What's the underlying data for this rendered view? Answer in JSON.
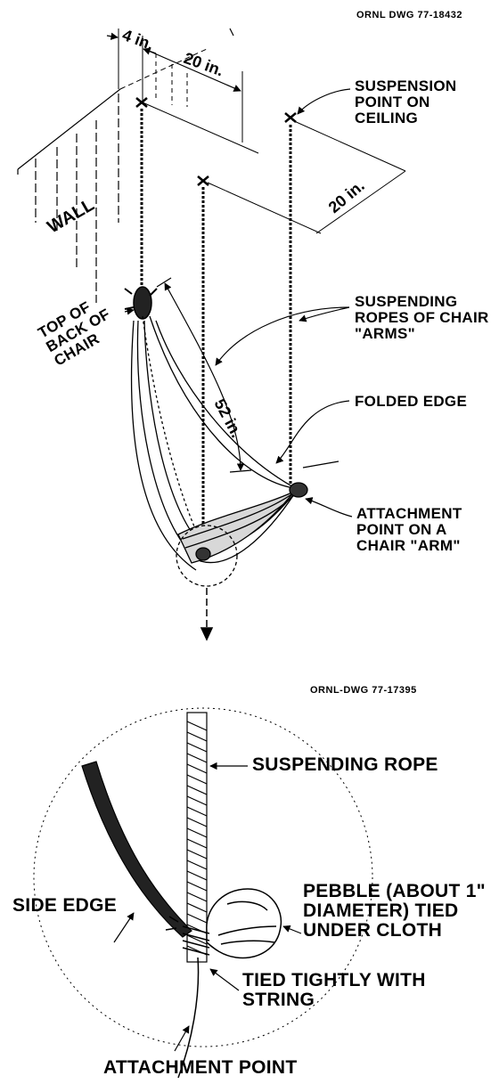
{
  "top_figure": {
    "drawing_number": "ORNL DWG 77-18432",
    "dimension_4in": "4 in.",
    "dimension_20in_top": "20 in.",
    "dimension_20in_right": "20 in.",
    "dimension_52in": "52 in.",
    "wall": "WALL",
    "suspension_point": "SUSPENSION\nPOINT ON\nCEILING",
    "suspending_ropes": "SUSPENDING\nROPES OF CHAIR\n\"ARMS\"",
    "folded_edge": "FOLDED EDGE",
    "attachment_point": "ATTACHMENT\nPOINT ON A\nCHAIR \"ARM\"",
    "top_of_back": "TOP OF\nBACK OF\nCHAIR"
  },
  "bottom_figure": {
    "drawing_number": "ORNL-DWG 77-17395",
    "suspending_rope": "SUSPENDING ROPE",
    "side_edge": "SIDE EDGE",
    "pebble": "PEBBLE (ABOUT 1\"\nDIAMETER) TIED\nUNDER CLOTH",
    "tied_tightly": "TIED TIGHTLY WITH\n         STRING",
    "attachment_point": "ATTACHMENT POINT"
  }
}
